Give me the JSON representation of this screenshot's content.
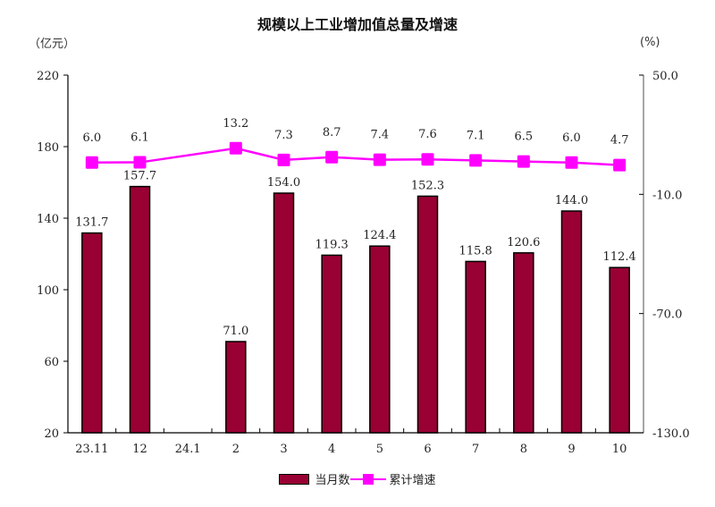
{
  "title": "规模以上工业增加值总量及增速",
  "left_unit": "（亿元）",
  "right_unit": "(%)",
  "legend": {
    "bar_label": "当月数",
    "line_label": "累计增速"
  },
  "colors": {
    "bar": "#990033",
    "line": "#ff00ff",
    "right_axis": "#888888"
  },
  "chart_data": {
    "type": "bar+line",
    "title": "规模以上工业增加值总量及增速",
    "categories": [
      "23.11",
      "12",
      "24.1",
      "2",
      "3",
      "4",
      "5",
      "6",
      "7",
      "8",
      "9",
      "10"
    ],
    "series": [
      {
        "name": "当月数",
        "type": "bar",
        "axis": "left",
        "values": [
          131.7,
          157.7,
          null,
          71.0,
          154.0,
          119.3,
          124.4,
          152.3,
          115.8,
          120.6,
          144.0,
          112.4
        ]
      },
      {
        "name": "累计增速",
        "type": "line",
        "axis": "right",
        "values": [
          6.0,
          6.1,
          null,
          13.2,
          7.3,
          8.7,
          7.4,
          7.6,
          7.1,
          6.5,
          6.0,
          4.7
        ]
      }
    ],
    "left_axis": {
      "label": "（亿元）",
      "min": 20,
      "max": 220,
      "ticks": [
        20,
        60,
        100,
        140,
        180,
        220
      ]
    },
    "right_axis": {
      "label": "(%)",
      "min": -130,
      "max": 50,
      "ticks": [
        "-130.0",
        "-70.0",
        "-10.0",
        "50.0"
      ]
    },
    "grid": false,
    "legend_position": "bottom"
  }
}
